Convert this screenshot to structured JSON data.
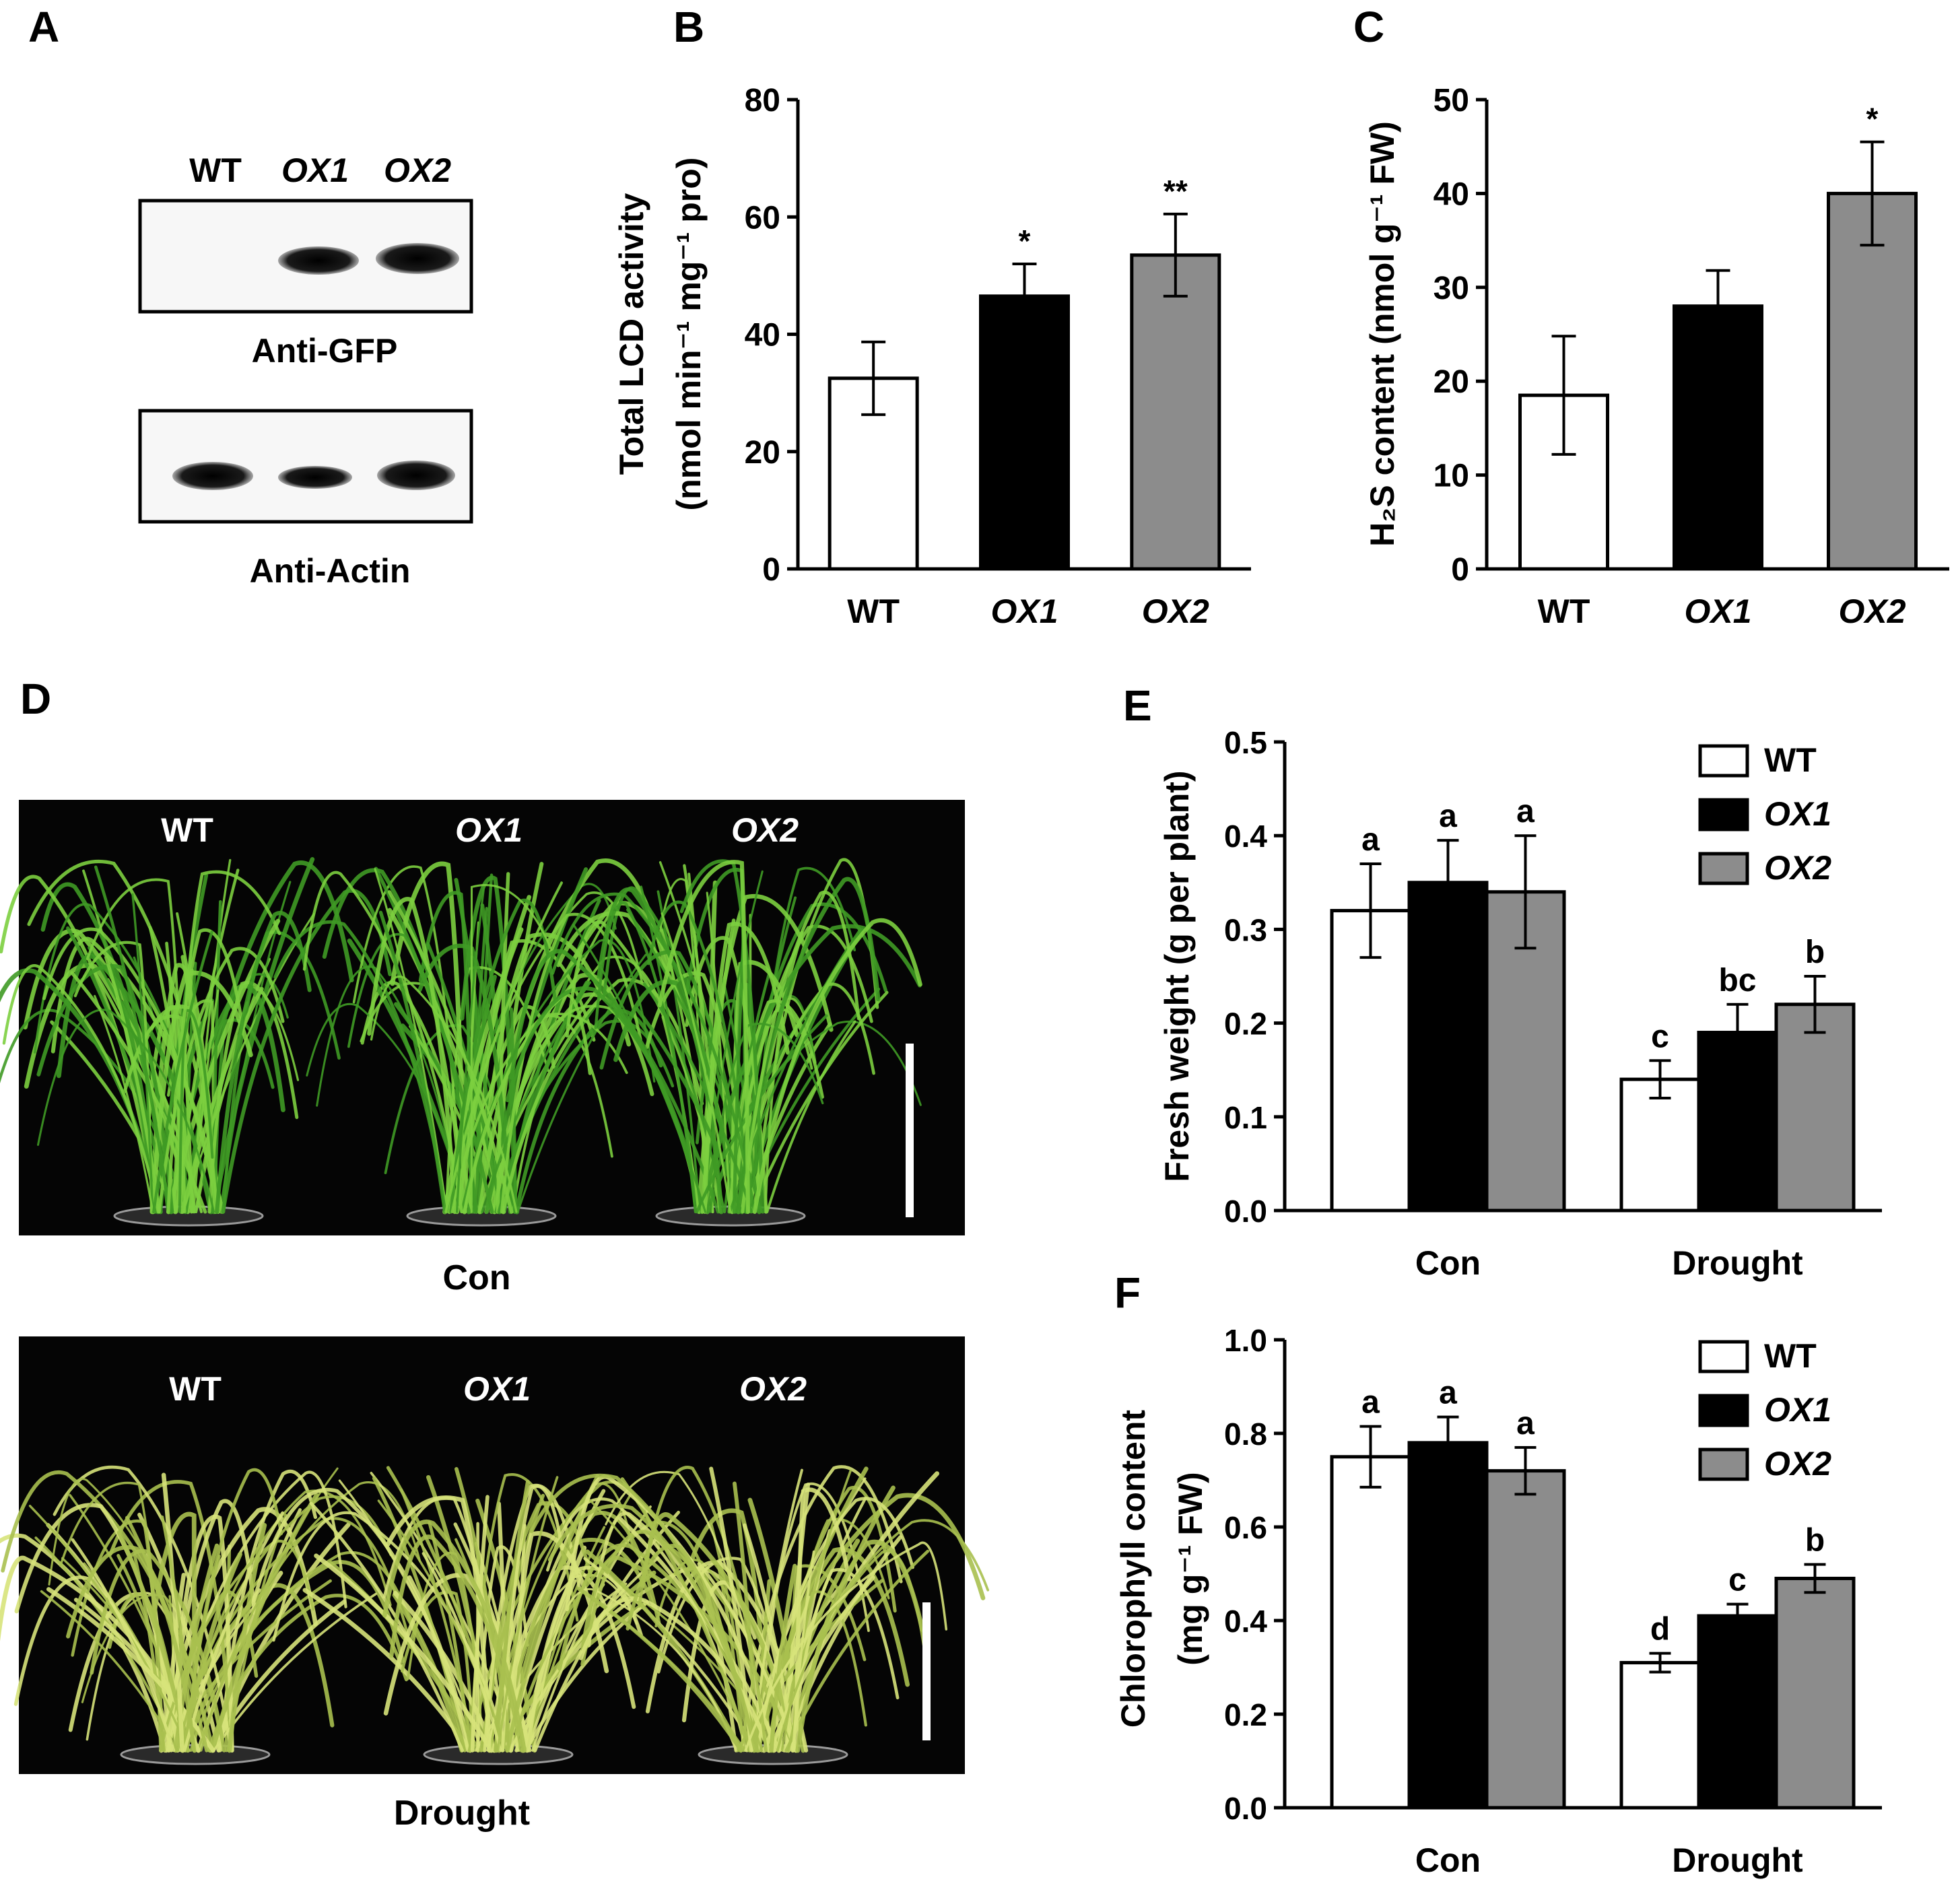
{
  "panel_letters": [
    "A",
    "B",
    "C",
    "D",
    "E",
    "F"
  ],
  "blot": {
    "lanes": [
      "WT",
      "OX1",
      "OX2"
    ],
    "top_label": "Anti-GFP",
    "bottom_label": "Anti-Actin",
    "gfp_band_present": [
      false,
      true,
      true
    ],
    "actin_band_present": [
      true,
      true,
      true
    ],
    "colors": {
      "band": "#0e0e0e",
      "membrane": "#f7f7f7"
    }
  },
  "photos": {
    "top_lanes": [
      "WT",
      "OX1",
      "OX2"
    ],
    "top_caption": "Con",
    "bottom_lanes": [
      "WT",
      "OX1",
      "OX2"
    ],
    "bottom_caption": "Drought",
    "colors": {
      "background": "#050505",
      "control_leaf": "#6fbf3a",
      "drought_leaf": "#c9d96b",
      "scale_bar": "#ffffff"
    }
  },
  "chart_data": [
    {
      "id": "B",
      "type": "bar",
      "categories": [
        "WT",
        "OX1",
        "OX2"
      ],
      "values": [
        32.5,
        46.5,
        53.5
      ],
      "errors": [
        6.2,
        5.5,
        7.0
      ],
      "annotations": [
        "",
        "*",
        "**"
      ],
      "colors": [
        "#ffffff",
        "#000000",
        "#8c8c8c"
      ],
      "ylabel_line1": "Total LCD activity",
      "ylabel_line2": "(nmol min⁻¹ mg⁻¹ pro)",
      "ylim": [
        0,
        80
      ],
      "yticks": [
        "0",
        "20",
        "40",
        "60",
        "80"
      ]
    },
    {
      "id": "C",
      "type": "bar",
      "categories": [
        "WT",
        "OX1",
        "OX2"
      ],
      "values": [
        18.5,
        28,
        40
      ],
      "errors": [
        6.3,
        3.8,
        5.5
      ],
      "annotations": [
        "",
        "",
        "*"
      ],
      "colors": [
        "#ffffff",
        "#000000",
        "#8c8c8c"
      ],
      "ylabel": "H₂S content (nmol g⁻¹ FW)",
      "ylim": [
        0,
        50
      ],
      "yticks": [
        "0",
        "10",
        "20",
        "30",
        "40",
        "50"
      ]
    },
    {
      "id": "E",
      "type": "bar",
      "categories": [
        "Con",
        "Drought"
      ],
      "series": [
        {
          "name": "WT",
          "values": [
            0.32,
            0.14
          ],
          "errors": [
            0.05,
            0.02
          ],
          "letters": [
            "a",
            "c"
          ]
        },
        {
          "name": "OX1",
          "values": [
            0.35,
            0.19
          ],
          "errors": [
            0.045,
            0.03
          ],
          "letters": [
            "a",
            "bc"
          ]
        },
        {
          "name": "OX2",
          "values": [
            0.34,
            0.22
          ],
          "errors": [
            0.06,
            0.03
          ],
          "letters": [
            "a",
            "b"
          ]
        }
      ],
      "colors": [
        "#ffffff",
        "#000000",
        "#8c8c8c"
      ],
      "ylabel": "Fresh weight (g per plant)",
      "ylim": [
        0,
        0.5
      ],
      "yticks": [
        "0.0",
        "0.1",
        "0.2",
        "0.3",
        "0.4",
        "0.5"
      ],
      "legend_position": "top-right"
    },
    {
      "id": "F",
      "type": "bar",
      "categories": [
        "Con",
        "Drought"
      ],
      "series": [
        {
          "name": "WT",
          "values": [
            0.75,
            0.31
          ],
          "errors": [
            0.065,
            0.02
          ],
          "letters": [
            "a",
            "d"
          ]
        },
        {
          "name": "OX1",
          "values": [
            0.78,
            0.41
          ],
          "errors": [
            0.055,
            0.025
          ],
          "letters": [
            "a",
            "c"
          ]
        },
        {
          "name": "OX2",
          "values": [
            0.72,
            0.49
          ],
          "errors": [
            0.05,
            0.03
          ],
          "letters": [
            "a",
            "b"
          ]
        }
      ],
      "colors": [
        "#ffffff",
        "#000000",
        "#8c8c8c"
      ],
      "ylabel_line1": "Chlorophyll content",
      "ylabel_line2": "(mg g⁻¹ FW)",
      "ylim": [
        0,
        1.0
      ],
      "yticks": [
        "0.0",
        "0.2",
        "0.4",
        "0.6",
        "0.8",
        "1.0"
      ],
      "legend_position": "top-right"
    }
  ]
}
